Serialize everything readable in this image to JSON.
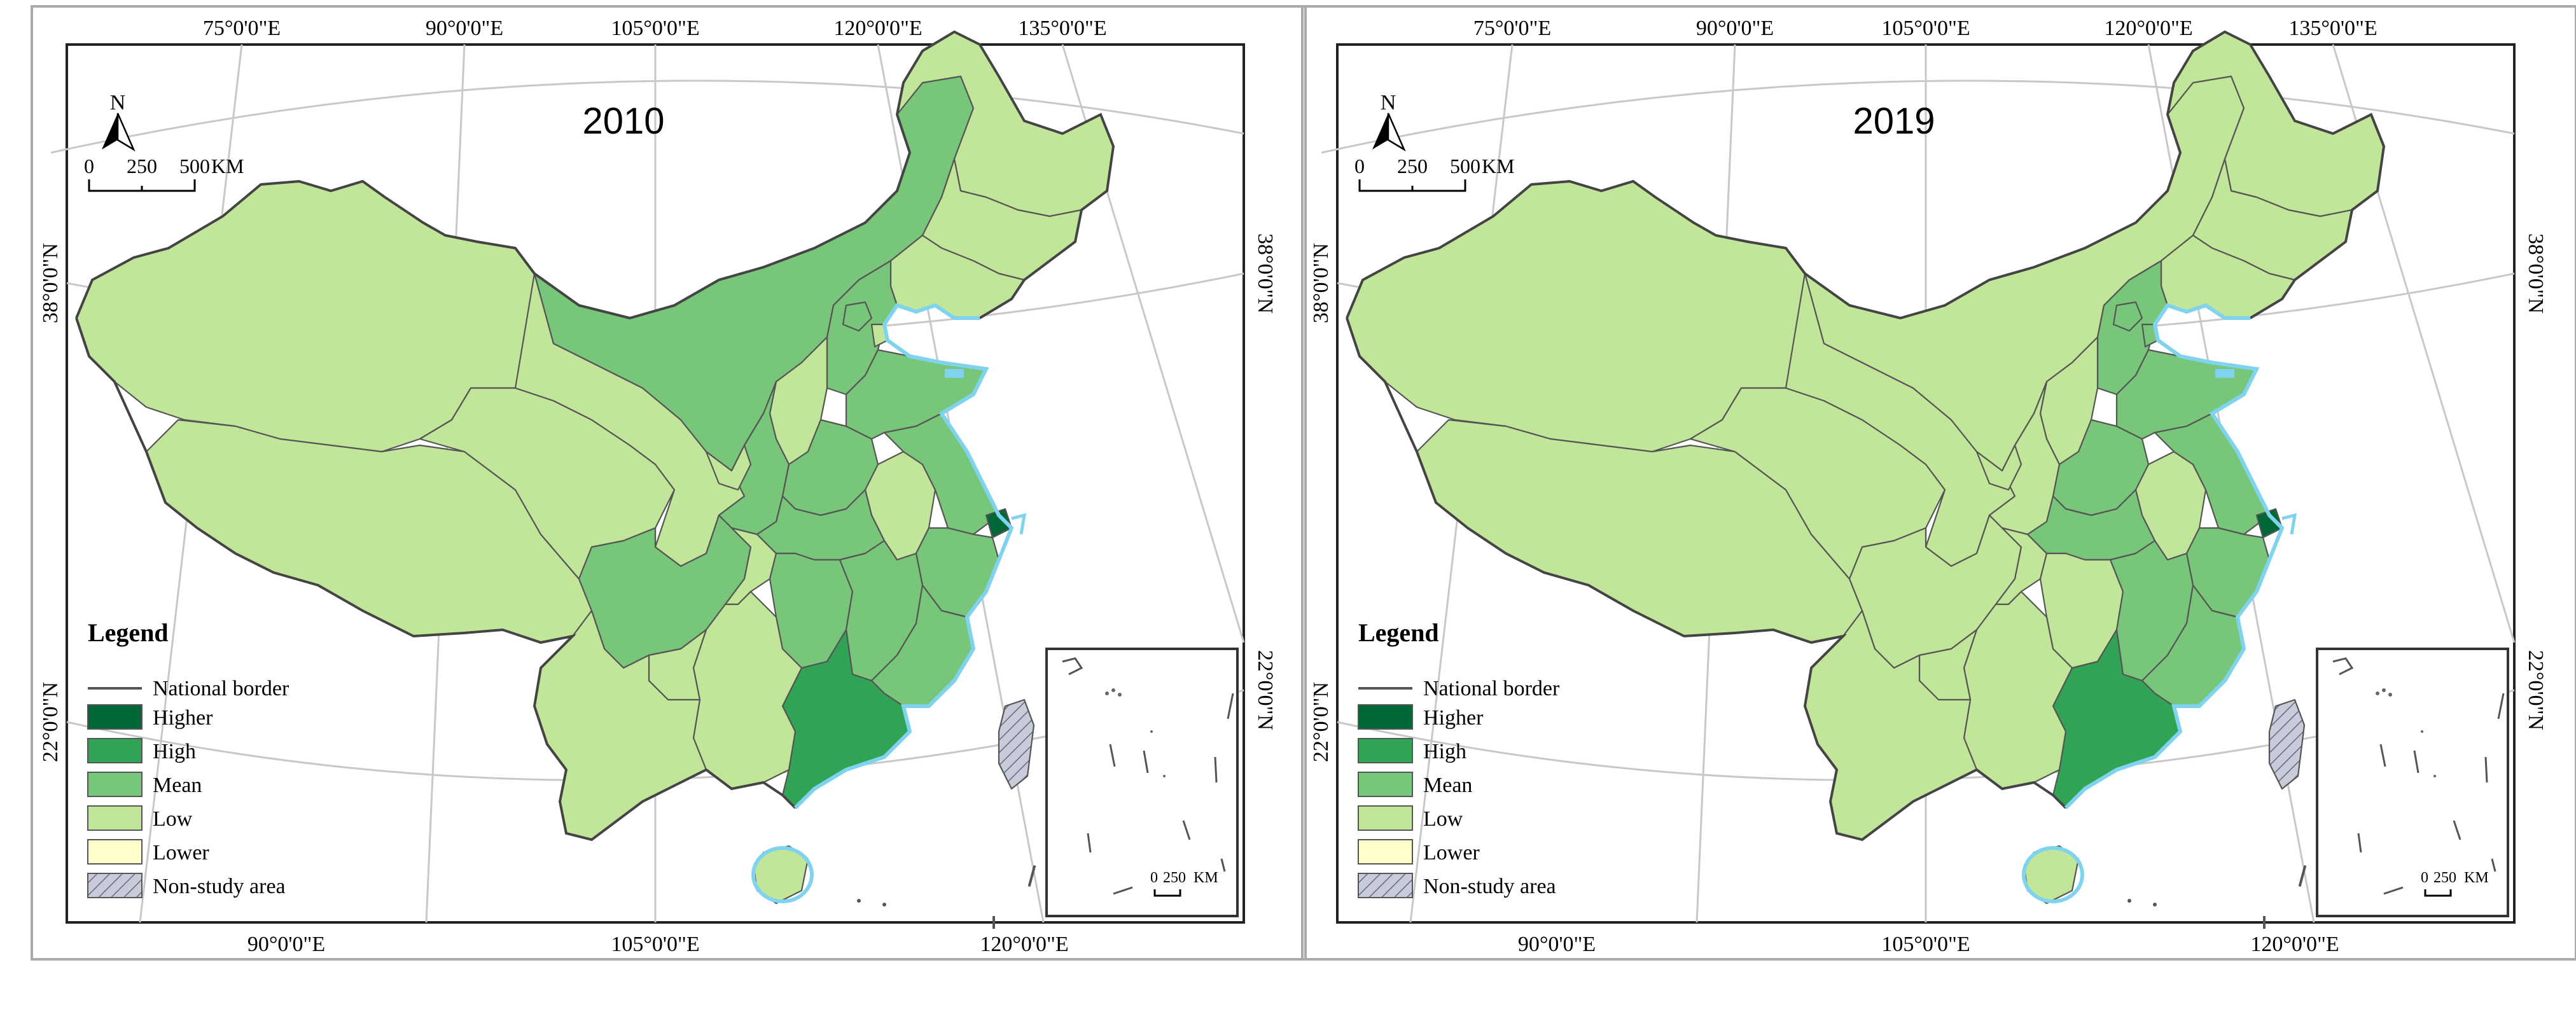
{
  "panels": [
    {
      "year": "2010",
      "lon_top": [
        "75°0'0\"E",
        "90°0'0\"E",
        "105°0'0\"E",
        "120°0'0\"E",
        "135°0'0\"E"
      ],
      "lon_bottom": [
        "90°0'0\"E",
        "105°0'0\"E",
        "120°0'0\"E"
      ],
      "lat_left": [
        "38°0'0\"N",
        "22°0'0\"N"
      ],
      "lat_right": [
        "38°0'0\"N",
        "22°0'0\"N"
      ]
    },
    {
      "year": "2019",
      "lon_top": [
        "75°0'0\"E",
        "90°0'0\"E",
        "105°0'0\"E",
        "120°0'0\"E",
        "135°0'0\"E"
      ],
      "lon_bottom": [
        "90°0'0\"E",
        "105°0'0\"E",
        "120°0'0\"E"
      ],
      "lat_left": [
        "38°0'0\"N",
        "22°0'0\"N"
      ],
      "lat_right": [
        "38°0'0\"N",
        "22°0'0\"N"
      ]
    }
  ],
  "north_arrow_label": "N",
  "scale_bar": {
    "ticks": [
      "0",
      "250",
      "500"
    ],
    "unit": "KM"
  },
  "inset_scale": {
    "ticks": [
      "0",
      "250"
    ],
    "unit": "KM"
  },
  "legend": {
    "title": "Legend",
    "border_label": "National border",
    "classes": [
      {
        "label": "Higher",
        "color": "#006837"
      },
      {
        "label": "High",
        "color": "#31a354"
      },
      {
        "label": "Mean",
        "color": "#78c679"
      },
      {
        "label": "Low",
        "color": "#c2e699"
      },
      {
        "label": "Lower",
        "color": "#ffffcc"
      }
    ],
    "non_study_label": "Non-study area"
  },
  "region_levels": {
    "2010": {
      "Xinjiang": "Low",
      "Tibet": "Low",
      "Qinghai": "Low",
      "Gansu": "Low",
      "Inner Mongolia": "Mean",
      "Heilongjiang": "Low",
      "Jilin": "Low",
      "Liaoning": "Low",
      "Hebei": "Mean",
      "Beijing": "Mean",
      "Tianjin": "Low",
      "Shanxi": "Low",
      "Shaanxi": "Mean",
      "Ningxia": "Low",
      "Sichuan": "Mean",
      "Chongqing": "Low",
      "Henan": "Mean",
      "Shandong": "Mean",
      "Anhui": "Low",
      "Jiangsu": "Mean",
      "Shanghai": "Higher",
      "Zhejiang": "Mean",
      "Hubei": "Mean",
      "Hunan": "Mean",
      "Jiangxi": "Mean",
      "Fujian": "Mean",
      "Guangdong": "High",
      "Guangxi": "Low",
      "Guizhou": "Low",
      "Yunnan": "Low",
      "Hainan": "Low",
      "Taiwan": "Non-study area"
    },
    "2019": {
      "Xinjiang": "Low",
      "Tibet": "Low",
      "Qinghai": "Low",
      "Gansu": "Low",
      "Inner Mongolia": "Low",
      "Heilongjiang": "Low",
      "Jilin": "Low",
      "Liaoning": "Low",
      "Hebei": "Mean",
      "Beijing": "Mean",
      "Tianjin": "Mean",
      "Shanxi": "Low",
      "Shaanxi": "Low",
      "Ningxia": "Low",
      "Sichuan": "Low",
      "Chongqing": "Low",
      "Henan": "Mean",
      "Shandong": "Mean",
      "Anhui": "Low",
      "Jiangsu": "Mean",
      "Shanghai": "Higher",
      "Zhejiang": "Mean",
      "Hubei": "Mean",
      "Hunan": "Low",
      "Jiangxi": "Mean",
      "Fujian": "Mean",
      "Guangdong": "High",
      "Guangxi": "Low",
      "Guizhou": "Low",
      "Yunnan": "Low",
      "Hainan": "Low",
      "Taiwan": "Non-study area"
    }
  }
}
